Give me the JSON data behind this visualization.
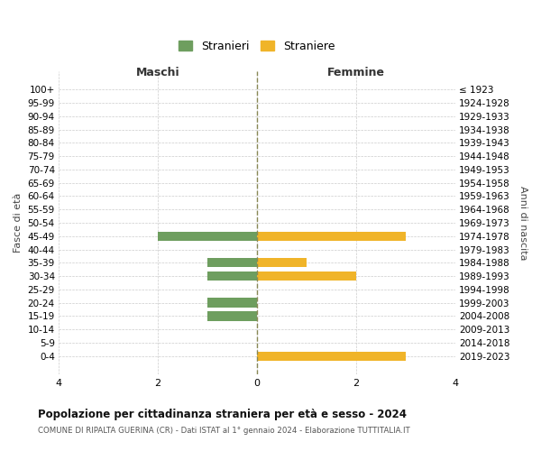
{
  "age_groups": [
    "100+",
    "95-99",
    "90-94",
    "85-89",
    "80-84",
    "75-79",
    "70-74",
    "65-69",
    "60-64",
    "55-59",
    "50-54",
    "45-49",
    "40-44",
    "35-39",
    "30-34",
    "25-29",
    "20-24",
    "15-19",
    "10-14",
    "5-9",
    "0-4"
  ],
  "birth_years": [
    "≤ 1923",
    "1924-1928",
    "1929-1933",
    "1934-1938",
    "1939-1943",
    "1944-1948",
    "1949-1953",
    "1954-1958",
    "1959-1963",
    "1964-1968",
    "1969-1973",
    "1974-1978",
    "1979-1983",
    "1984-1988",
    "1989-1993",
    "1994-1998",
    "1999-2003",
    "2004-2008",
    "2009-2013",
    "2014-2018",
    "2019-2023"
  ],
  "maschi": [
    0,
    0,
    0,
    0,
    0,
    0,
    0,
    0,
    0,
    0,
    0,
    2,
    0,
    1,
    1,
    0,
    1,
    1,
    0,
    0,
    0
  ],
  "femmine": [
    0,
    0,
    0,
    0,
    0,
    0,
    0,
    0,
    0,
    0,
    0,
    3,
    0,
    1,
    2,
    0,
    0,
    0,
    0,
    0,
    3
  ],
  "color_maschi": "#6e9e5f",
  "color_femmine": "#f0b429",
  "title": "Popolazione per cittadinanza straniera per età e sesso - 2024",
  "subtitle": "COMUNE DI RIPALTA GUERINA (CR) - Dati ISTAT al 1° gennaio 2024 - Elaborazione TUTTITALIA.IT",
  "xlabel_left": "Maschi",
  "xlabel_right": "Femmine",
  "ylabel_left": "Fasce di età",
  "ylabel_right": "Anni di nascita",
  "legend_maschi": "Stranieri",
  "legend_femmine": "Straniere",
  "xlim": 4,
  "background_color": "#ffffff"
}
